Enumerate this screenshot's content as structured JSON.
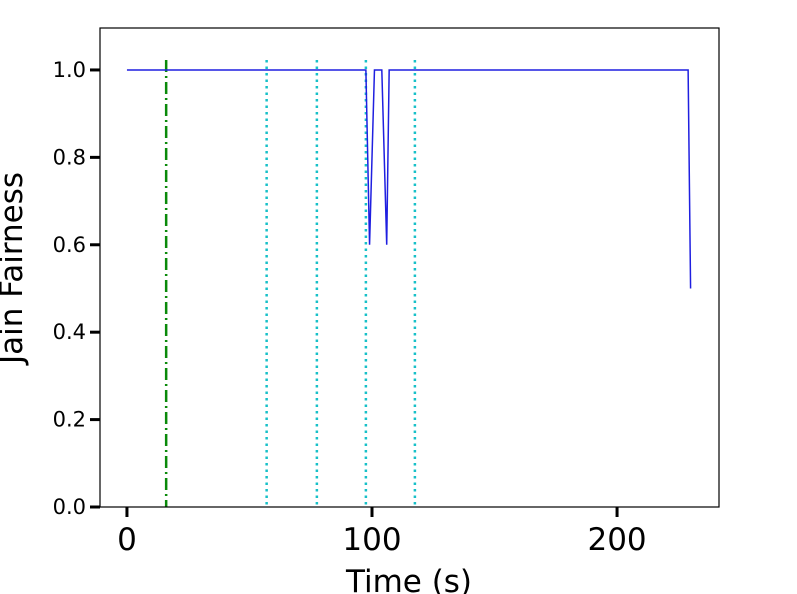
{
  "chart_data": {
    "type": "line",
    "xlabel": "Time (s)",
    "ylabel": "Jain Fairness",
    "x": [
      0,
      97.5,
      99,
      101,
      104,
      106,
      107,
      229,
      230
    ],
    "series": [
      {
        "color": "#1f1fe0",
        "values": [
          1,
          1,
          0.6,
          1,
          1,
          0.6,
          1,
          1,
          0.5
        ]
      }
    ],
    "vlines": [
      {
        "x": 16,
        "color": "#0a8a0a",
        "style": "dashdot"
      },
      {
        "x": 57,
        "color": "#17c0c8",
        "style": "dotted"
      },
      {
        "x": 77.5,
        "color": "#17c0c8",
        "style": "dotted"
      },
      {
        "x": 97.5,
        "color": "#17c0c8",
        "style": "dotted"
      },
      {
        "x": 117.5,
        "color": "#17c0c8",
        "style": "dotted"
      }
    ],
    "xlim": [
      -11,
      241.6
    ],
    "ylim": [
      0,
      1.096
    ],
    "xticks": [
      0,
      100,
      200
    ],
    "yticks": [
      {
        "value": 0,
        "label": "0.0"
      },
      {
        "value": 0.2,
        "label": "0.2"
      },
      {
        "value": 0.4,
        "label": "0.4"
      },
      {
        "value": 0.6,
        "label": "0.6"
      },
      {
        "value": 0.8,
        "label": "0.8"
      },
      {
        "value": 1,
        "label": "1.0"
      }
    ]
  }
}
